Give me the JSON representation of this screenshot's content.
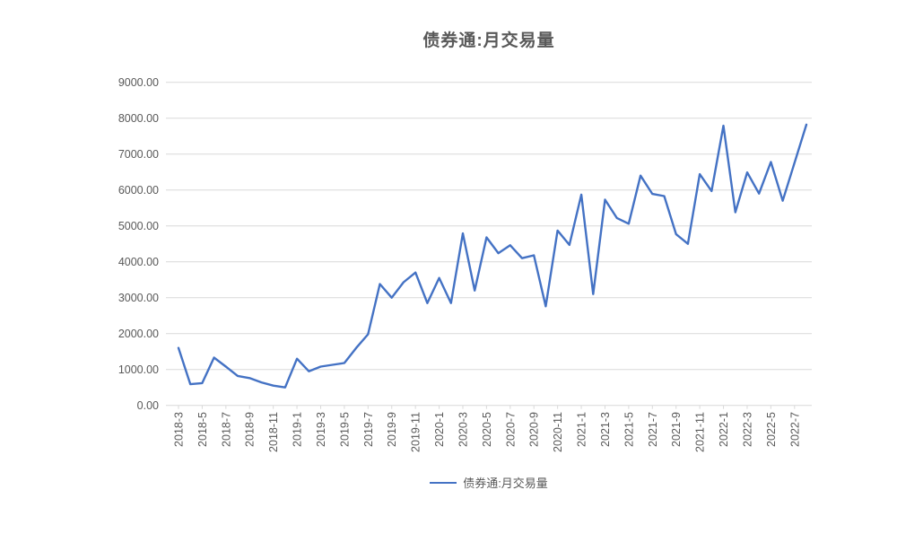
{
  "page": {
    "title": "债券通:月交易量"
  },
  "chart": {
    "title": "债券通:月交易量",
    "legend": {
      "label": "债券通:月交易量"
    }
  },
  "chart_data": {
    "type": "line",
    "title": "债券通:月交易量",
    "x": [
      "2018-3",
      "2018-4",
      "2018-5",
      "2018-6",
      "2018-7",
      "2018-8",
      "2018-9",
      "2018-10",
      "2018-11",
      "2018-12",
      "2019-1",
      "2019-2",
      "2019-3",
      "2019-4",
      "2019-5",
      "2019-6",
      "2019-7",
      "2019-8",
      "2019-9",
      "2019-10",
      "2019-11",
      "2019-12",
      "2020-1",
      "2020-2",
      "2020-3",
      "2020-4",
      "2020-5",
      "2020-6",
      "2020-7",
      "2020-8",
      "2020-9",
      "2020-10",
      "2020-11",
      "2020-12",
      "2021-1",
      "2021-2",
      "2021-3",
      "2021-4",
      "2021-5",
      "2021-6",
      "2021-7",
      "2021-8",
      "2021-9",
      "2021-10",
      "2021-11",
      "2021-12",
      "2022-1",
      "2022-2",
      "2022-3",
      "2022-4",
      "2022-5",
      "2022-6",
      "2022-7",
      "2022-8"
    ],
    "series": [
      {
        "name": "债券通:月交易量",
        "values": [
          1600,
          590,
          620,
          1330,
          1080,
          820,
          760,
          640,
          550,
          500,
          1300,
          950,
          1080,
          1130,
          1180,
          1600,
          1980,
          3380,
          3000,
          3430,
          3700,
          2850,
          3550,
          2850,
          4790,
          3200,
          4680,
          4240,
          4460,
          4100,
          4180,
          2760,
          4870,
          4470,
          5870,
          3100,
          5730,
          5220,
          5060,
          6400,
          5890,
          5830,
          4770,
          4500,
          6440,
          5970,
          7790,
          5380,
          6490,
          5900,
          6780,
          5700,
          6760,
          7820
        ]
      }
    ],
    "xlabel": "",
    "ylabel": "",
    "ylim": [
      0,
      9000
    ],
    "ytick_step": 1000,
    "ytick_decimals": 2,
    "xtick_every": 2,
    "x_last_label": "2022-7",
    "grid": "horizontal",
    "legend_position": "bottom",
    "line_color": "#4472C4",
    "text_color": "#595959",
    "grid_color": "#D9D9D9"
  }
}
